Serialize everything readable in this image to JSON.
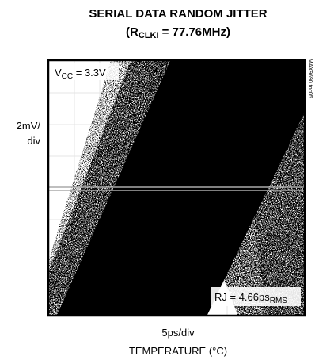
{
  "title": {
    "line1": "SERIAL DATA RANDOM JITTER",
    "line2": {
      "prefix": "(R",
      "subscript": "CLKI",
      "suffix": " = 77.76MHz)"
    }
  },
  "annotations": {
    "vcc": {
      "prefix": "V",
      "subscript": "CC",
      "suffix": " = 3.3V"
    },
    "rj": {
      "prefix": "RJ = 4.66ps",
      "subscript": "RMS"
    }
  },
  "axes": {
    "y_label_line1": "2mV/",
    "y_label_line2": "div",
    "x_label": "5ps/div",
    "x_title": "TEMPERATURE (°C)"
  },
  "figure_id": "MAX9690 toc05"
}
